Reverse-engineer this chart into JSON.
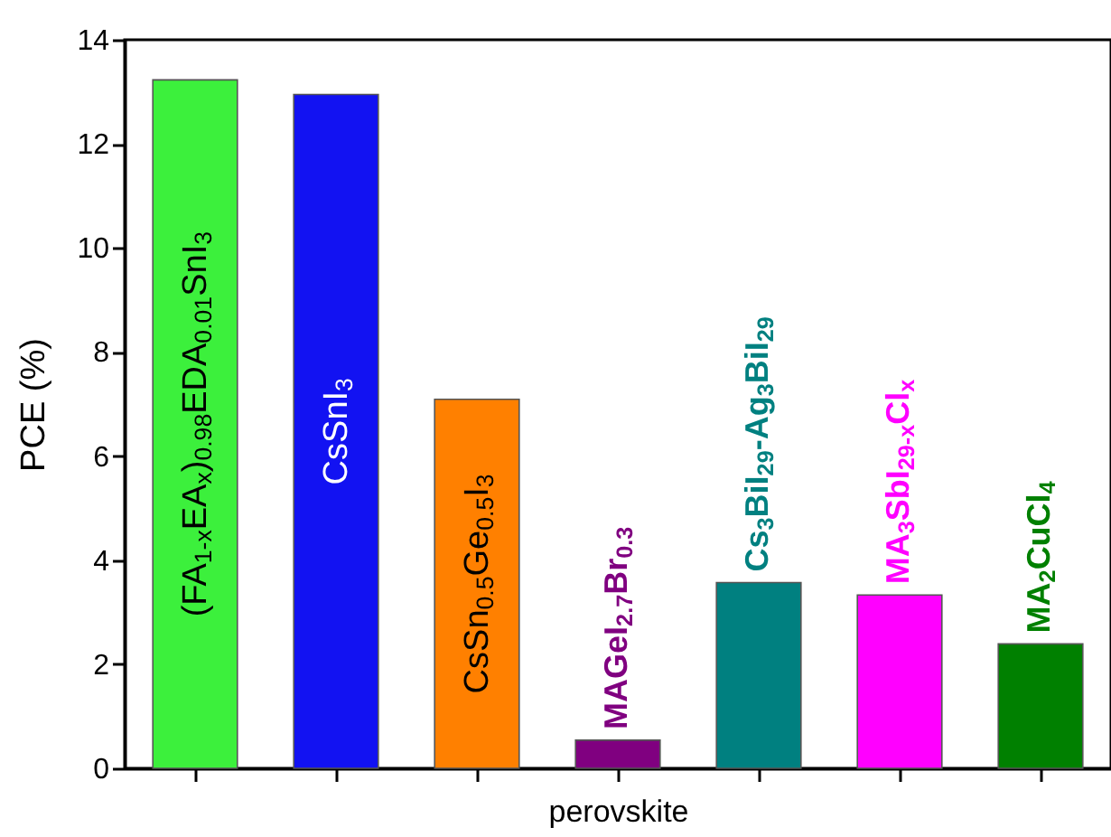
{
  "chart_data": {
    "type": "bar",
    "xlabel": "perovskite",
    "ylabel": "PCE (%)",
    "categories": [
      "(FA$_{1-x}$EA$_{x}$)$_{0.98}$EDA$_{0.01}$SnI$_{3}$",
      "CsSnI$_{3}$",
      "CsSn$_{0.5}$Ge$_{0.5}$I$_{3}$",
      "MAGeI$_{2.7}$Br$_{0.3}$",
      "Cs$_{3}$BiI$_{29}$-Ag$_{3}$BiI$_{29}$",
      "MA$_{3}$SbI$_{29-x}$Cl$_{x}$",
      "MA$_{2}$CuCl$_{4}$"
    ],
    "values": [
      13.23,
      12.95,
      7.09,
      0.54,
      3.57,
      3.33,
      2.39
    ],
    "colors": [
      "#3cf03c",
      "#1212f2",
      "#ff8000",
      "#800080",
      "#008080",
      "#ff00ff",
      "#008000"
    ],
    "ylim": [
      0,
      14
    ],
    "yticks": [
      0,
      2,
      4,
      6,
      8,
      10,
      12,
      14
    ],
    "tick_labels": "y"
  }
}
